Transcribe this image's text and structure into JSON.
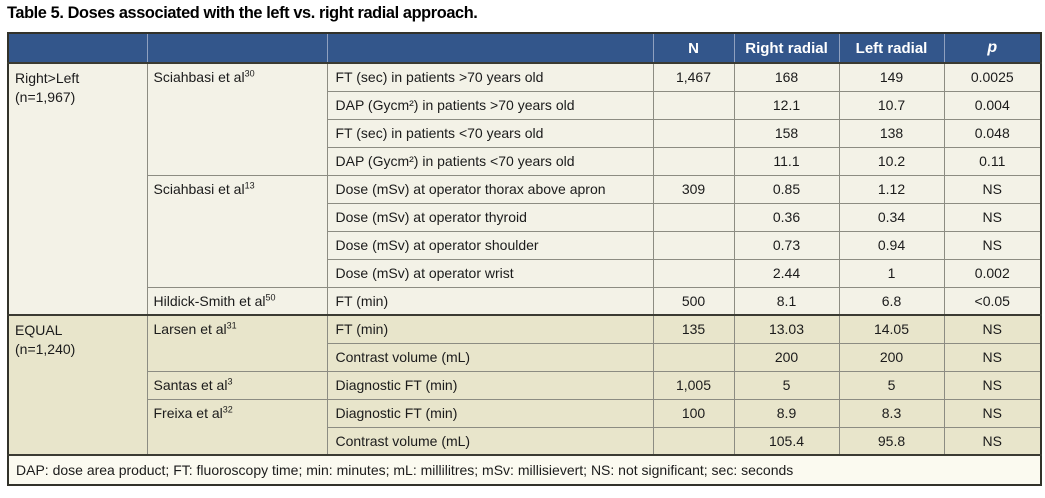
{
  "title": "Table 5. Doses associated with the left vs. right radial approach.",
  "header": {
    "n": "N",
    "right": "Right radial",
    "left": "Left radial",
    "p": "p"
  },
  "groups": [
    {
      "line1": "Right>Left",
      "line2": "(n=1,967)"
    },
    {
      "line1": "EQUAL",
      "line2": "(n=1,240)"
    }
  ],
  "studies": [
    {
      "name": "Sciahbasi et al",
      "ref": "30"
    },
    {
      "name": "Sciahbasi et al",
      "ref": "13"
    },
    {
      "name": "Hildick-Smith et al",
      "ref": "50"
    },
    {
      "name": "Larsen et al",
      "ref": "31"
    },
    {
      "name": "Santas et al",
      "ref": "3"
    },
    {
      "name": "Freixa et al",
      "ref": "32"
    }
  ],
  "rows": [
    {
      "measure": "FT (sec) in patients >70 years old",
      "n": "1,467",
      "right": "168",
      "left": "149",
      "p": "0.0025"
    },
    {
      "measure": "DAP (Gycm²) in patients >70 years old",
      "n": "",
      "right": "12.1",
      "left": "10.7",
      "p": "0.004"
    },
    {
      "measure": "FT (sec) in patients <70 years old",
      "n": "",
      "right": "158",
      "left": "138",
      "p": "0.048"
    },
    {
      "measure": "DAP (Gycm²) in patients <70 years old",
      "n": "",
      "right": "11.1",
      "left": "10.2",
      "p": "0.11"
    },
    {
      "measure": "Dose (mSv) at operator thorax above apron",
      "n": "309",
      "right": "0.85",
      "left": "1.12",
      "p": "NS"
    },
    {
      "measure": "Dose (mSv) at operator thyroid",
      "n": "",
      "right": "0.36",
      "left": "0.34",
      "p": "NS"
    },
    {
      "measure": "Dose (mSv) at operator shoulder",
      "n": "",
      "right": "0.73",
      "left": "0.94",
      "p": "NS"
    },
    {
      "measure": "Dose (mSv) at operator wrist",
      "n": "",
      "right": "2.44",
      "left": "1",
      "p": "0.002"
    },
    {
      "measure": "FT (min)",
      "n": "500",
      "right": "8.1",
      "left": "6.8",
      "p": "<0.05"
    },
    {
      "measure": "FT (min)",
      "n": "135",
      "right": "13.03",
      "left": "14.05",
      "p": "NS"
    },
    {
      "measure": "Contrast volume (mL)",
      "n": "",
      "right": "200",
      "left": "200",
      "p": "NS"
    },
    {
      "measure": "Diagnostic FT (min)",
      "n": "1,005",
      "right": "5",
      "left": "5",
      "p": "NS"
    },
    {
      "measure": "Diagnostic FT (min)",
      "n": "100",
      "right": "8.9",
      "left": "8.3",
      "p": "NS"
    },
    {
      "measure": "Contrast volume (mL)",
      "n": "",
      "right": "105.4",
      "left": "95.8",
      "p": "NS"
    }
  ],
  "footnote": "DAP: dose area product; FT: fluoroscopy time; min: minutes; mL: millilitres; mSv: millisievert; NS: not significant; sec: seconds",
  "colors": {
    "header_bg": "#33568B",
    "header_text": "#FFFFFF",
    "group_right_left_bg": "#F3F2E7",
    "group_equal_bg": "#E8E5CB",
    "footnote_bg": "#FBFAF0",
    "border_dark": "#3B3B32",
    "border_light": "#8C8C82"
  }
}
